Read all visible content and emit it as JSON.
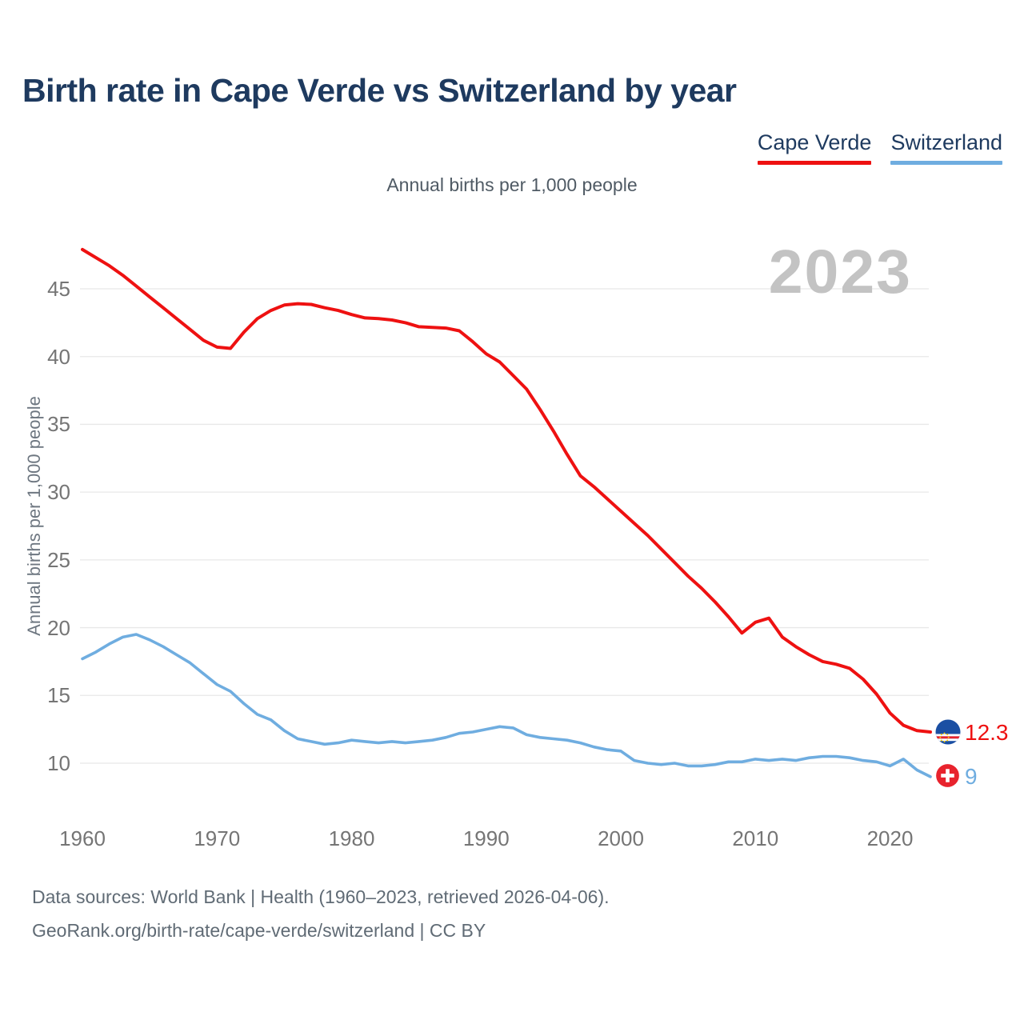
{
  "page": {
    "title": "Birth rate in Cape Verde vs Switzerland by year"
  },
  "legend": {
    "items": [
      {
        "label": "Cape Verde",
        "color": "#ee1111"
      },
      {
        "label": "Switzerland",
        "color": "#6fade0"
      }
    ]
  },
  "subtitle": "Annual births per 1,000 people",
  "watermark": "2023",
  "end_labels": {
    "cape_verde": {
      "value": "12.3",
      "icon": "cape-verde-flag-icon"
    },
    "switzerland": {
      "value": "9",
      "icon": "switzerland-flag-icon"
    }
  },
  "footer": {
    "line1": "Data sources: World Bank | Health (1960–2023, retrieved 2026-04-06).",
    "line2": "GeoRank.org/birth-rate/cape-verde/switzerland | CC BY"
  },
  "chart_data": {
    "type": "line",
    "title": "Birth rate in Cape Verde vs Switzerland by year",
    "ylabel": "Annual births per 1,000 people",
    "grid": "horizontal",
    "legend_position": "top-right",
    "xlim": [
      1960,
      2023
    ],
    "ylim": [
      9,
      48
    ],
    "xticks": [
      1960,
      1970,
      1980,
      1990,
      2000,
      2010,
      2020
    ],
    "yticks": [
      10,
      15,
      20,
      25,
      30,
      35,
      40,
      45
    ],
    "x": [
      1960,
      1961,
      1962,
      1963,
      1964,
      1965,
      1966,
      1967,
      1968,
      1969,
      1970,
      1971,
      1972,
      1973,
      1974,
      1975,
      1976,
      1977,
      1978,
      1979,
      1980,
      1981,
      1982,
      1983,
      1984,
      1985,
      1986,
      1987,
      1988,
      1989,
      1990,
      1991,
      1992,
      1993,
      1994,
      1995,
      1996,
      1997,
      1998,
      1999,
      2000,
      2001,
      2002,
      2003,
      2004,
      2005,
      2006,
      2007,
      2008,
      2009,
      2010,
      2011,
      2012,
      2013,
      2014,
      2015,
      2016,
      2017,
      2018,
      2019,
      2020,
      2021,
      2022,
      2023
    ],
    "series": [
      {
        "name": "Cape Verde",
        "color": "#ee1111",
        "values": [
          47.9,
          47.3,
          46.7,
          46.0,
          45.2,
          44.4,
          43.6,
          42.8,
          42.0,
          41.2,
          40.7,
          40.6,
          41.8,
          42.8,
          43.4,
          43.8,
          43.9,
          43.85,
          43.6,
          43.4,
          43.1,
          42.85,
          42.8,
          42.7,
          42.5,
          42.2,
          42.15,
          42.1,
          41.9,
          41.1,
          40.2,
          39.6,
          38.6,
          37.6,
          36.1,
          34.5,
          32.8,
          31.2,
          30.4,
          29.5,
          28.6,
          27.7,
          26.8,
          25.8,
          24.8,
          23.8,
          22.9,
          21.9,
          20.8,
          19.6,
          20.4,
          20.7,
          19.3,
          18.6,
          18.0,
          17.5,
          17.3,
          17.0,
          16.2,
          15.1,
          13.7,
          12.8,
          12.4,
          12.3
        ]
      },
      {
        "name": "Switzerland",
        "color": "#6fade0",
        "values": [
          17.7,
          18.2,
          18.8,
          19.3,
          19.5,
          19.1,
          18.6,
          18.0,
          17.4,
          16.6,
          15.8,
          15.3,
          14.4,
          13.6,
          13.2,
          12.4,
          11.8,
          11.6,
          11.4,
          11.5,
          11.7,
          11.6,
          11.5,
          11.6,
          11.5,
          11.6,
          11.7,
          11.9,
          12.2,
          12.3,
          12.5,
          12.7,
          12.6,
          12.1,
          11.9,
          11.8,
          11.7,
          11.5,
          11.2,
          11.0,
          10.9,
          10.2,
          10.0,
          9.9,
          10.0,
          9.8,
          9.8,
          9.9,
          10.1,
          10.1,
          10.3,
          10.2,
          10.3,
          10.2,
          10.4,
          10.5,
          10.5,
          10.4,
          10.2,
          10.1,
          9.8,
          10.3,
          9.5,
          9.0
        ]
      }
    ],
    "end_value_labels": {
      "Cape Verde": 12.3,
      "Switzerland": 9
    }
  }
}
